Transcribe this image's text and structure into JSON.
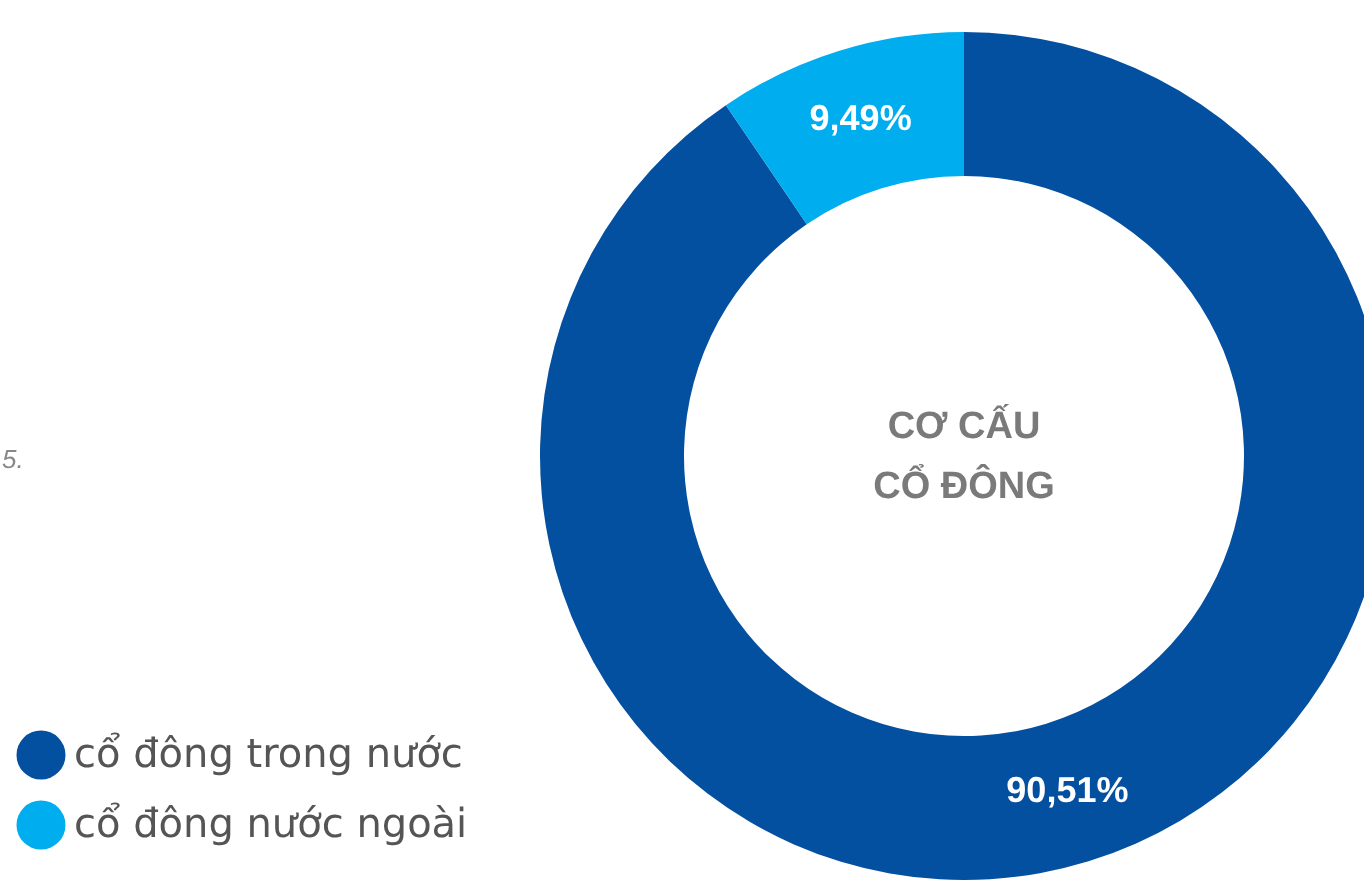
{
  "chart_data": {
    "type": "donut",
    "title": "CƠ CẤU\nCỔ ĐÔNG",
    "categories": [
      "cổ đông trong nước",
      "cổ đông nước ngoài"
    ],
    "values": [
      90.51,
      9.49
    ],
    "value_labels": [
      "90,51%",
      "9,49%"
    ],
    "colors": [
      "#0450a0",
      "#00aeef"
    ],
    "legend": "bottom left",
    "annotations": [
      "5."
    ]
  }
}
